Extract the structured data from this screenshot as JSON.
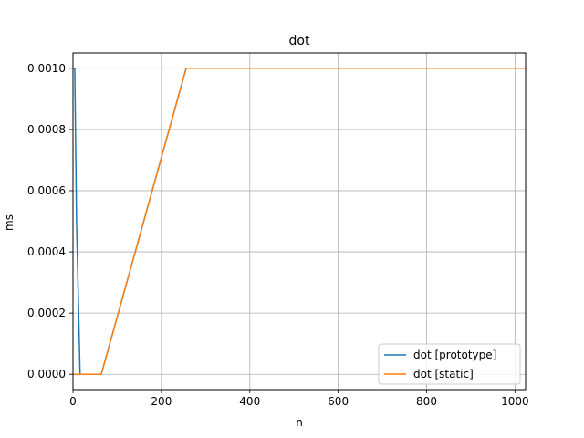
{
  "chart_data": {
    "type": "line",
    "title": "dot",
    "xlabel": "n",
    "ylabel": "ms",
    "xlim": [
      0,
      1024
    ],
    "ylim": [
      -5e-05,
      0.00105
    ],
    "xticks": [
      0,
      200,
      400,
      600,
      800,
      1000
    ],
    "xtick_labels": [
      "0",
      "200",
      "400",
      "600",
      "800",
      "1000"
    ],
    "yticks": [
      0,
      0.0002,
      0.0004,
      0.0006,
      0.0008,
      0.001
    ],
    "ytick_labels": [
      "0.0000",
      "0.0002",
      "0.0004",
      "0.0006",
      "0.0008",
      "0.0010"
    ],
    "grid": true,
    "legend_position": "lower-right",
    "series": [
      {
        "name": "dot [prototype]",
        "color": "#1f77b4",
        "x": [
          1,
          2,
          4,
          8,
          16,
          32,
          64,
          128,
          256,
          512,
          1024
        ],
        "y": [
          0.001,
          0.001,
          0.001,
          0.0005,
          0,
          0,
          0,
          0.0003333,
          0.001,
          0.001,
          0.001
        ]
      },
      {
        "name": "dot [static]",
        "color": "#ff7f0e",
        "x": [
          1,
          2,
          4,
          8,
          16,
          32,
          64,
          128,
          256,
          512,
          1024
        ],
        "y": [
          0,
          0,
          0,
          0,
          0,
          0,
          0,
          0.0003333,
          0.001,
          0.001,
          0.001
        ]
      }
    ]
  }
}
